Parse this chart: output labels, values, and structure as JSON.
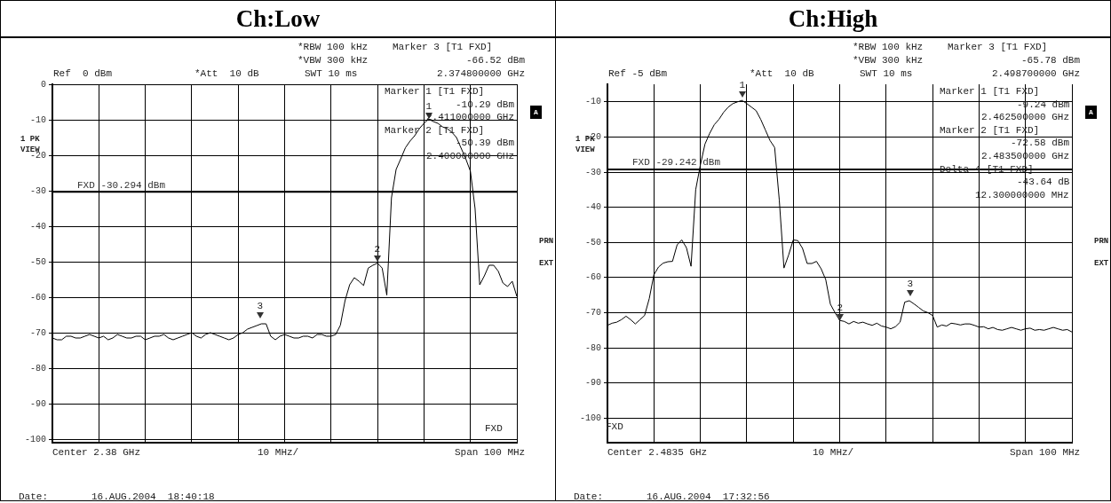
{
  "chart_data": [
    {
      "type": "line",
      "title": "Ch:Low",
      "grid": true,
      "tick_labels": "y",
      "categories": [
        null,
        null,
        null,
        null,
        null,
        null,
        null,
        null,
        null,
        null,
        null,
        null,
        null,
        null,
        null,
        null,
        null,
        null,
        null,
        null,
        null,
        null,
        null,
        null,
        null,
        null,
        null,
        null,
        null,
        null,
        null,
        null,
        null,
        null,
        null,
        null,
        null,
        null,
        null,
        null,
        null,
        null,
        null,
        null,
        null,
        null,
        null,
        null,
        null,
        null,
        null,
        null,
        null,
        null,
        null,
        null,
        null,
        null,
        null,
        null,
        null,
        null,
        null,
        null,
        null,
        null,
        null,
        null,
        null,
        null,
        null,
        null,
        null,
        null,
        null,
        null,
        null,
        null,
        null,
        null,
        null,
        null,
        null,
        null,
        null,
        null,
        null,
        null,
        null,
        null,
        null,
        null,
        null,
        null,
        null,
        null,
        null,
        null,
        null,
        null,
        null
      ],
      "ylim": [
        -101,
        0
      ],
      "yticks": [
        0,
        -10,
        -20,
        -30,
        -40,
        -50,
        -60,
        -70,
        -80,
        -90,
        -100
      ],
      "series": [
        {
          "color": "#000000",
          "values": [
            -71.5,
            -72,
            -72,
            -71,
            -71,
            -71.5,
            -71.5,
            -71,
            -70.5,
            -71,
            -71.5,
            -71,
            -72,
            -71.5,
            -70.5,
            -71,
            -71.5,
            -71.5,
            -71,
            -71,
            -72,
            -71.5,
            -71,
            -71,
            -70.5,
            -71.5,
            -72,
            -71.5,
            -71,
            -70.5,
            -70,
            -71,
            -71.5,
            -70.5,
            -70,
            -70.5,
            -71,
            -71.5,
            -72,
            -71.5,
            -70.5,
            -70,
            -69,
            -68.5,
            -68,
            -67.5,
            -67.5,
            -71,
            -72,
            -71,
            -70.5,
            -71,
            -71.5,
            -71.5,
            -71,
            -71,
            -71.5,
            -70.5,
            -70.5,
            -71,
            -71,
            -70.5,
            -67.9,
            -61,
            -56.5,
            -54.5,
            -55.5,
            -56.7,
            -51.8,
            -51,
            -50.4,
            -51.8,
            -59.4,
            -32,
            -24,
            -21,
            -17.9,
            -16,
            -14.5,
            -12.5,
            -11,
            -9.8,
            -10.5,
            -11,
            -12,
            -12.5,
            -13.5,
            -15,
            -18,
            -21,
            -24.5,
            -35,
            -56.5,
            -54,
            -51,
            -51,
            -52.7,
            -56,
            -57,
            -55.5,
            -59.8
          ]
        }
      ],
      "ref_lines": [
        {
          "axis": "y",
          "value": -30.294,
          "label": "FXD -30.294 dBm"
        }
      ],
      "annotations": [
        "*RBW 100 kHz",
        "*VBW 300 kHz",
        "SWT 10 ms",
        "Ref  0 dBm",
        "*Att  10 dB",
        "Marker 3 [T1 FXD]",
        "-66.52 dBm",
        "2.374800000 GHz",
        "1 PK",
        "VIEW",
        "A",
        "PRN",
        "EXT",
        "Center 2.38 GHz",
        "10 MHz/",
        "Span 100 MHz",
        "Date:",
        "16.AUG.2004  18:40:18",
        "1",
        "2",
        "3",
        "FXD",
        "Marker 1 [T1 FXD]",
        "-10.29 dBm",
        "2.411000000 GHz",
        "Marker 2 [T1 FXD]",
        "-50.39 dBm",
        "2.400000000 GHz"
      ]
    },
    {
      "type": "line",
      "title": "Ch:High",
      "grid": true,
      "tick_labels": "y",
      "categories": [
        null,
        null,
        null,
        null,
        null,
        null,
        null,
        null,
        null,
        null,
        null,
        null,
        null,
        null,
        null,
        null,
        null,
        null,
        null,
        null,
        null,
        null,
        null,
        null,
        null,
        null,
        null,
        null,
        null,
        null,
        null,
        null,
        null,
        null,
        null,
        null,
        null,
        null,
        null,
        null,
        null,
        null,
        null,
        null,
        null,
        null,
        null,
        null,
        null,
        null,
        null,
        null,
        null,
        null,
        null,
        null,
        null,
        null,
        null,
        null,
        null,
        null,
        null,
        null,
        null,
        null,
        null,
        null,
        null,
        null,
        null,
        null,
        null,
        null,
        null,
        null,
        null,
        null,
        null,
        null,
        null,
        null,
        null,
        null,
        null,
        null,
        null,
        null,
        null,
        null,
        null,
        null,
        null,
        null,
        null,
        null,
        null,
        null,
        null,
        null,
        null
      ],
      "ylim": [
        -107,
        -5
      ],
      "yticks": [
        -10,
        -20,
        -30,
        -40,
        -50,
        -60,
        -70,
        -80,
        -90,
        -100
      ],
      "series": [
        {
          "color": "#000000",
          "values": [
            -73.6,
            -73,
            -72.7,
            -72,
            -71,
            -72,
            -73.2,
            -72,
            -70.8,
            -66,
            -59.2,
            -57,
            -55.9,
            -55.5,
            -55.4,
            -50.7,
            -49.3,
            -51.5,
            -56.8,
            -35,
            -28,
            -22,
            -19,
            -16.5,
            -15,
            -13,
            -11.5,
            -10.5,
            -10,
            -9.6,
            -10.5,
            -11.5,
            -12.5,
            -15,
            -18,
            -21,
            -23,
            -38,
            -57.3,
            -53.6,
            -49.3,
            -49.5,
            -51.7,
            -56,
            -56,
            -55.4,
            -57.5,
            -60.6,
            -67.6,
            -70,
            -72.2,
            -72.5,
            -73.2,
            -72.5,
            -73,
            -72.7,
            -73.2,
            -73.6,
            -73,
            -73.8,
            -74.1,
            -74.6,
            -74,
            -72.7,
            -67,
            -66.6,
            -67.5,
            -68.5,
            -69.5,
            -70,
            -70.8,
            -74.1,
            -73.5,
            -73.8,
            -73,
            -73.2,
            -73.5,
            -73.2,
            -73.2,
            -73.6,
            -74.1,
            -74,
            -74.6,
            -74.2,
            -74.8,
            -75,
            -74.6,
            -74.2,
            -74.6,
            -75,
            -74.6,
            -74.4,
            -75,
            -74.8,
            -75,
            -74.6,
            -74.2,
            -74.6,
            -75,
            -74.8,
            -75.5
          ]
        }
      ],
      "ref_lines": [
        {
          "axis": "y",
          "value": -29.242,
          "label": "FXD -29.242 dBm"
        }
      ],
      "annotations": [
        "*RBW 100 kHz",
        "*VBW 300 kHz",
        "SWT 10 ms",
        "Ref -5 dBm",
        "*Att  10 dB",
        "Marker 3 [T1 FXD]",
        "-65.78 dBm",
        "2.498700000 GHz",
        "1 PK",
        "VIEW",
        "A",
        "PRN",
        "EXT",
        "Center 2.4835 GHz",
        "10 MHz/",
        "Span 100 MHz",
        "Date:",
        "16.AUG.2004  17:32:56",
        "1",
        "2",
        "3",
        "FXD",
        "Marker 1 [T1 FXD]",
        "-9.24 dBm",
        "2.462500000 GHz",
        "Marker 2 [T1 FXD]",
        "-72.58 dBm",
        "2.483500000 GHz",
        "Delta 4 [T1 FXD]",
        "-43.64 dB",
        "12.300000000 MHz"
      ]
    }
  ]
}
